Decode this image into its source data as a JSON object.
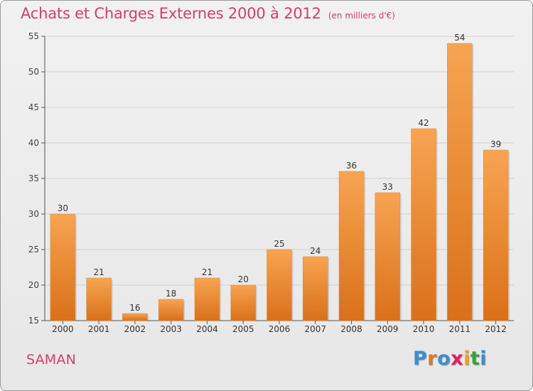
{
  "title": "Achats et Charges Externes 2000 à 2012",
  "subtitle": "(en milliers d'€)",
  "commune": "SAMAN",
  "logo": {
    "text": "Proxiti",
    "colors": [
      "#3a8fd0",
      "#e07820",
      "#3a8fd0",
      "#e02060",
      "#f0a020",
      "#3aa040",
      "#3a8fd0"
    ]
  },
  "chart_data": {
    "type": "bar",
    "title": "Achats et Charges Externes 2000 à 2012",
    "subtitle": "(en milliers d'€)",
    "xlabel": "",
    "ylabel": "",
    "categories": [
      "2000",
      "2001",
      "2002",
      "2003",
      "2004",
      "2005",
      "2006",
      "2007",
      "2008",
      "2009",
      "2010",
      "2011",
      "2012"
    ],
    "values": [
      30,
      21,
      16,
      18,
      21,
      20,
      25,
      24,
      36,
      33,
      42,
      54,
      39
    ],
    "ylim": [
      15,
      55
    ],
    "yticks": [
      15,
      20,
      25,
      30,
      35,
      40,
      45,
      50,
      55
    ],
    "grid": true,
    "bar_color_top": "#f7a452",
    "bar_color_bottom": "#d9701a",
    "data_labels": true
  }
}
